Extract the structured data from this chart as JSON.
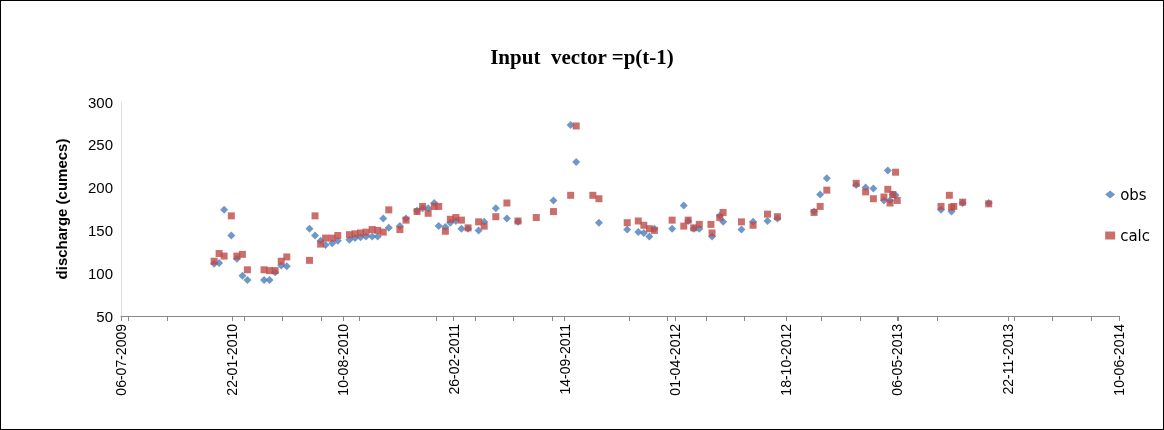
{
  "chart_data": {
    "type": "scatter",
    "title": "Input  vector =p(t-1)",
    "ylabel": "discharge (cumecs)",
    "x": [
      "2009-12-21",
      "2009-12-30",
      "2010-01-08",
      "2010-01-21",
      "2010-01-31",
      "2010-02-10",
      "2010-02-19",
      "2010-03-21",
      "2010-03-31",
      "2010-04-10",
      "2010-04-21",
      "2010-05-01",
      "2010-06-11",
      "2010-06-21",
      "2010-07-01",
      "2010-07-10",
      "2010-07-22",
      "2010-08-01",
      "2010-08-22",
      "2010-09-01",
      "2010-09-11",
      "2010-09-21",
      "2010-10-02",
      "2010-10-12",
      "2010-10-22",
      "2010-11-01",
      "2010-11-21",
      "2010-12-02",
      "2010-12-22",
      "2011-01-01",
      "2011-01-11",
      "2011-01-22",
      "2011-01-30",
      "2011-02-11",
      "2011-02-20",
      "2011-03-02",
      "2011-03-12",
      "2011-03-24",
      "2011-04-12",
      "2011-04-22",
      "2011-05-13",
      "2011-06-02",
      "2011-06-22",
      "2011-07-25",
      "2011-08-25",
      "2011-09-25",
      "2011-10-05",
      "2011-11-04",
      "2011-11-15",
      "2012-01-05",
      "2012-01-25",
      "2012-02-04",
      "2012-02-14",
      "2012-02-23",
      "2012-03-26",
      "2012-04-16",
      "2012-04-24",
      "2012-05-04",
      "2012-05-14",
      "2012-06-04",
      "2012-06-06",
      "2012-06-20",
      "2012-06-26",
      "2012-07-29",
      "2012-08-19",
      "2012-09-14",
      "2012-10-02",
      "2012-12-07",
      "2012-12-18",
      "2012-12-30",
      "2013-02-21",
      "2013-03-10",
      "2013-03-24",
      "2013-04-12",
      "2013-04-19",
      "2013-04-23",
      "2013-04-28",
      "2013-05-03",
      "2013-05-06",
      "2013-07-24",
      "2013-08-08",
      "2013-08-12",
      "2013-08-16",
      "2013-09-01",
      "2013-10-18"
    ],
    "series": [
      {
        "name": "obs",
        "color": "#4a7ebb",
        "marker": "diamond",
        "values": [
          111,
          112,
          174,
          144,
          117,
          97,
          92,
          92,
          92,
          101,
          109,
          108,
          152,
          144,
          138,
          133,
          135,
          138,
          139,
          141,
          142,
          143,
          143,
          143,
          164,
          153,
          155,
          164,
          173,
          176,
          176,
          182,
          155,
          154,
          159,
          161,
          152,
          152,
          150,
          160,
          176,
          164,
          160,
          null,
          185,
          273,
          230,
          null,
          159,
          151,
          148,
          147,
          143,
          152,
          152,
          179,
          161,
          152,
          152,
          null,
          143,
          167,
          160,
          151,
          160,
          161,
          164,
          172,
          192,
          211,
          203,
          200,
          199,
          185,
          220,
          185,
          192,
          191,
          null,
          174,
          null,
          172,
          null,
          182,
          182
        ]
      },
      {
        "name": "calc",
        "color": "#be4b48",
        "marker": "square",
        "values": [
          114,
          123,
          120,
          167,
          120,
          122,
          104,
          104,
          103,
          103,
          114,
          119,
          115,
          167,
          134,
          141,
          141,
          144,
          145,
          146,
          147,
          148,
          151,
          150,
          148,
          174,
          151,
          162,
          172,
          178,
          170,
          178,
          178,
          149,
          163,
          165,
          162,
          153,
          160,
          155,
          166,
          182,
          161,
          165,
          172,
          191,
          272,
          191,
          187,
          159,
          161,
          156,
          152,
          150,
          162,
          155,
          162,
          153,
          157,
          157,
          147,
          165,
          171,
          160,
          156,
          169,
          166,
          171,
          178,
          197,
          205,
          195,
          187,
          189,
          198,
          182,
          192,
          218,
          185,
          178,
          191,
          177,
          178,
          183,
          181
        ]
      }
    ],
    "xlim": [
      "2009-07-06",
      "2014-06-10"
    ],
    "xticks": [
      {
        "value": "2009-07-06",
        "label": "06-07-2009"
      },
      {
        "value": "2010-01-22",
        "label": "22-01-2010"
      },
      {
        "value": "2010-08-10",
        "label": "10-08-2010"
      },
      {
        "value": "2011-02-26",
        "label": "26-02-2011"
      },
      {
        "value": "2011-09-14",
        "label": "14-09-2011"
      },
      {
        "value": "2012-04-01",
        "label": "01-04-2012"
      },
      {
        "value": "2012-10-18",
        "label": "18-10-2012"
      },
      {
        "value": "2013-05-06",
        "label": "06-05-2013"
      },
      {
        "value": "2013-11-22",
        "label": "22-11-2013"
      },
      {
        "value": "2014-06-10",
        "label": "10-06-2014"
      }
    ],
    "ylim": [
      50,
      300
    ],
    "yticks": [
      50,
      100,
      150,
      200,
      250,
      300
    ],
    "grid": false,
    "legend": "right"
  }
}
